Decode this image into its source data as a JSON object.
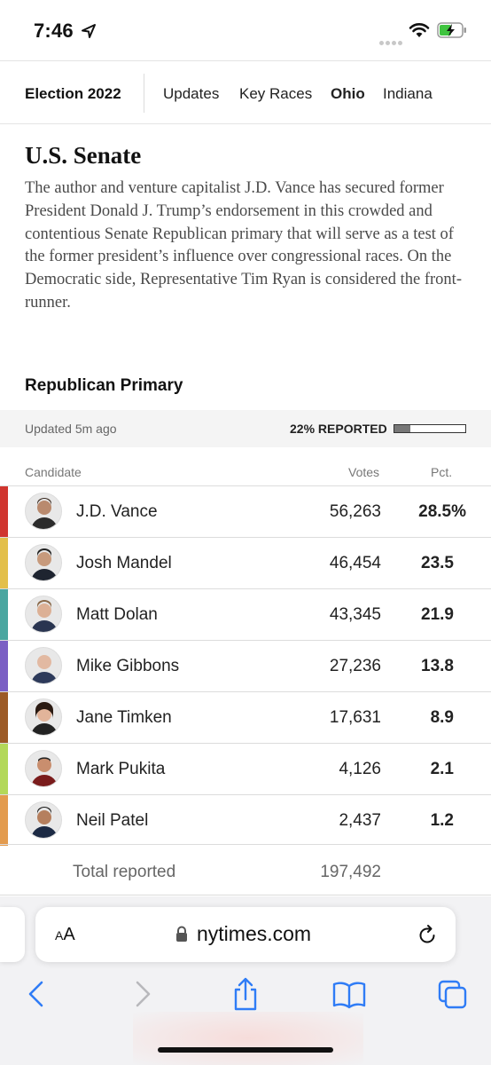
{
  "status_bar": {
    "time": "7:46"
  },
  "nav": {
    "title": "Election 2022",
    "items": [
      {
        "label": "Updates",
        "active": false
      },
      {
        "label": "Key Races",
        "active": false
      },
      {
        "label": "Ohio",
        "active": true
      },
      {
        "label": "Indiana",
        "active": false
      }
    ]
  },
  "article": {
    "headline": "U.S. Senate",
    "summary": "The author and venture capitalist J.D. Vance has secured former President Donald J. Trump’s endorsement in this crowded and contentious Senate Republican primary that will serve as a test of the former president’s influence over congressional races. On the Democratic side, Representative Tim Ryan is considered the front-runner."
  },
  "results": {
    "section_title": "Republican Primary",
    "updated": "Updated 5m ago",
    "reported_label": "22% REPORTED",
    "reported_fraction": 0.22,
    "columns": {
      "candidate": "Candidate",
      "votes": "Votes",
      "pct": "Pct."
    },
    "candidates": [
      {
        "name": "J.D. Vance",
        "votes": "56,263",
        "pct": "28.5%",
        "color": "#d0352f"
      },
      {
        "name": "Josh Mandel",
        "votes": "46,454",
        "pct": "23.5",
        "color": "#e3bf4a"
      },
      {
        "name": "Matt Dolan",
        "votes": "43,345",
        "pct": "21.9",
        "color": "#4aa6a0"
      },
      {
        "name": "Mike Gibbons",
        "votes": "27,236",
        "pct": "13.8",
        "color": "#7b5fc4"
      },
      {
        "name": "Jane Timken",
        "votes": "17,631",
        "pct": "8.9",
        "color": "#9c5a26"
      },
      {
        "name": "Mark Pukita",
        "votes": "4,126",
        "pct": "2.1",
        "color": "#b3d859"
      },
      {
        "name": "Neil Patel",
        "votes": "2,437",
        "pct": "1.2",
        "color": "#e39b4e"
      }
    ],
    "total_label": "Total reported",
    "total_votes": "197,492"
  },
  "browser": {
    "text_size_label": "AA",
    "url": "nytimes.com",
    "icons": [
      "back-icon",
      "forward-icon",
      "share-icon",
      "bookmarks-icon",
      "tabs-icon",
      "reload-icon",
      "lock-icon"
    ]
  }
}
